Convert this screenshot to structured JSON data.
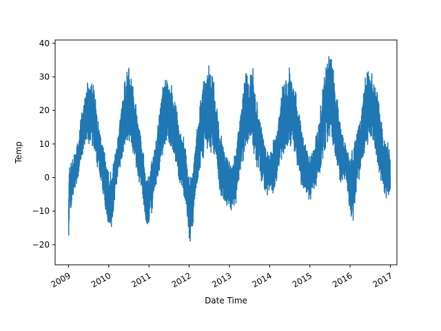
{
  "chart_data": {
    "type": "line",
    "title": "",
    "xlabel": "Date Time",
    "ylabel": "Temp",
    "x_range": [
      "2008-09-01",
      "2017-03-01"
    ],
    "ylim": [
      -26,
      41
    ],
    "grid": false,
    "color": "#1f77b4",
    "x_tick_labels": [
      "2009",
      "2010",
      "2011",
      "2012",
      "2013",
      "2014",
      "2015",
      "2016",
      "2017"
    ],
    "x_tick_dates": [
      "2009-01-01",
      "2010-01-01",
      "2011-01-01",
      "2012-01-01",
      "2013-01-01",
      "2014-01-01",
      "2015-01-01",
      "2016-01-01",
      "2017-01-01"
    ],
    "y_ticks": [
      -20,
      -10,
      0,
      10,
      20,
      30,
      40
    ],
    "y_tick_labels": [
      "−20",
      "−10",
      "0",
      "10",
      "20",
      "30",
      "40"
    ],
    "series": [
      {
        "x": [
          "2009-01-01",
          "2009-01-10",
          "2009-01-20",
          "2009-02-15",
          "2009-04-01",
          "2009-05-01",
          "2009-06-01",
          "2009-07-01",
          "2009-08-01",
          "2009-09-01",
          "2009-10-01",
          "2009-11-01",
          "2009-12-01",
          "2010-01-01",
          "2010-02-01",
          "2010-03-01",
          "2010-04-01",
          "2010-05-01",
          "2010-06-01",
          "2010-07-01",
          "2010-08-01",
          "2010-09-01",
          "2010-10-01",
          "2010-11-01",
          "2010-12-01",
          "2011-01-01",
          "2011-02-01",
          "2011-03-01",
          "2011-04-01",
          "2011-05-01",
          "2011-06-01",
          "2011-07-01",
          "2011-08-01",
          "2011-09-01",
          "2011-10-01",
          "2011-11-01",
          "2011-12-01",
          "2012-01-01",
          "2012-02-01",
          "2012-03-01",
          "2012-04-01",
          "2012-05-01",
          "2012-06-01",
          "2012-07-01",
          "2012-08-01",
          "2012-09-01",
          "2012-10-01",
          "2012-11-01",
          "2012-12-01",
          "2013-01-01",
          "2013-02-01",
          "2013-03-01",
          "2013-04-01",
          "2013-05-01",
          "2013-06-01",
          "2013-07-01",
          "2013-08-01",
          "2013-09-01",
          "2013-10-01",
          "2013-11-01",
          "2013-12-01",
          "2014-01-01",
          "2014-02-01",
          "2014-03-01",
          "2014-04-01",
          "2014-05-01",
          "2014-06-01",
          "2014-07-01",
          "2014-08-01",
          "2014-09-01",
          "2014-10-01",
          "2014-11-01",
          "2014-12-01",
          "2015-01-01",
          "2015-02-01",
          "2015-03-01",
          "2015-04-01",
          "2015-05-01",
          "2015-06-01",
          "2015-07-01",
          "2015-08-01",
          "2015-09-01",
          "2015-10-01",
          "2015-11-01",
          "2015-12-01",
          "2016-01-01",
          "2016-02-01",
          "2016-03-01",
          "2016-04-01",
          "2016-05-01",
          "2016-06-01",
          "2016-07-01",
          "2016-08-01",
          "2016-09-01",
          "2016-10-01",
          "2016-11-01",
          "2016-12-01",
          "2016-12-31"
        ],
        "high": [
          -3,
          5,
          6,
          7,
          12,
          22,
          24,
          33,
          30,
          26,
          16,
          12,
          8,
          2,
          3,
          8,
          14,
          25,
          31,
          35,
          29,
          24,
          16,
          11,
          3,
          2,
          7,
          12,
          19,
          27,
          32,
          29,
          28,
          24,
          16,
          14,
          9,
          3,
          2,
          13,
          20,
          29,
          33,
          36,
          33,
          24,
          17,
          12,
          8,
          5,
          6,
          10,
          19,
          28,
          33,
          32,
          34,
          27,
          20,
          14,
          10,
          8,
          11,
          14,
          21,
          29,
          30,
          34,
          29,
          25,
          20,
          13,
          10,
          7,
          9,
          14,
          20,
          30,
          37,
          37,
          35,
          26,
          18,
          14,
          11,
          8,
          10,
          15,
          19,
          27,
          32,
          34,
          30,
          28,
          21,
          14,
          12,
          11
        ],
        "low": [
          -23,
          -10,
          -11,
          -6,
          0,
          4,
          8,
          9,
          8,
          6,
          0,
          -3,
          -12,
          -18,
          -16,
          -5,
          1,
          4,
          8,
          10,
          7,
          3,
          -2,
          -5,
          -16,
          -16,
          -10,
          -4,
          0,
          4,
          8,
          8,
          7,
          4,
          -2,
          -6,
          -8,
          -21,
          -18,
          -5,
          0,
          4,
          8,
          8,
          6,
          3,
          -4,
          -8,
          -10,
          -12,
          -9,
          -8,
          0,
          3,
          7,
          10,
          8,
          2,
          0,
          -4,
          -6,
          -5,
          -5,
          -2,
          1,
          4,
          8,
          9,
          8,
          4,
          -1,
          -4,
          -8,
          -7,
          -5,
          -3,
          0,
          5,
          9,
          11,
          8,
          3,
          -2,
          -2,
          -4,
          -12,
          -14,
          -4,
          0,
          4,
          8,
          10,
          8,
          4,
          -2,
          -6,
          -7,
          -8
        ]
      }
    ]
  }
}
